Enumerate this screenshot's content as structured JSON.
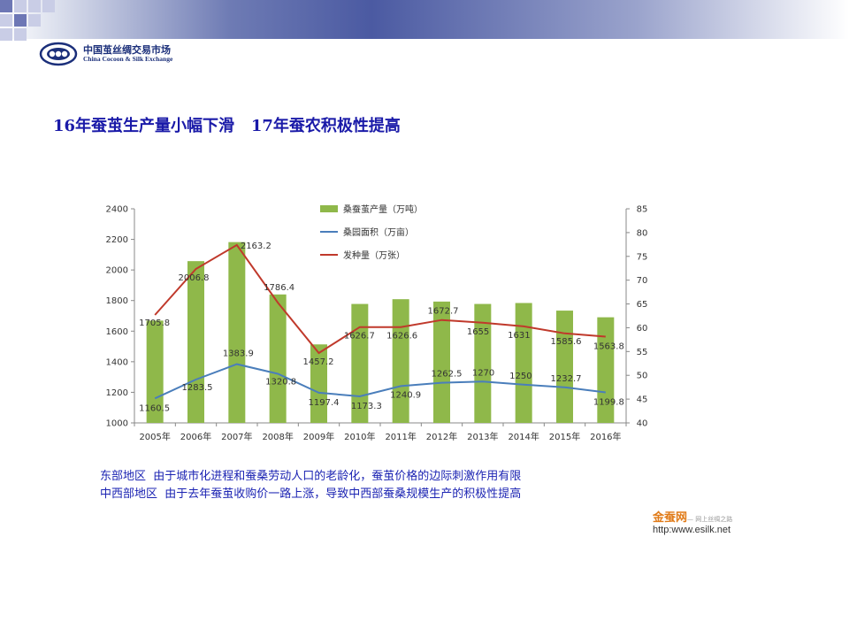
{
  "header": {
    "logo_cn": "中国茧丝绸交易市场",
    "logo_en": "China Cocoon & Silk Exchange",
    "logo_icon": "ccse-logo-icon"
  },
  "slide": {
    "title": "16年蚕茧生产量小幅下滑   17年蚕农积极性提高"
  },
  "chart_data": {
    "type": "bar",
    "categories": [
      "2005年",
      "2006年",
      "2007年",
      "2008年",
      "2009年",
      "2010年",
      "2011年",
      "2012年",
      "2013年",
      "2014年",
      "2015年",
      "2016年"
    ],
    "y_left": {
      "ylim": [
        1000,
        2400
      ],
      "ticks": [
        1000,
        1200,
        1400,
        1600,
        1800,
        2000,
        2200,
        2400
      ]
    },
    "y_right": {
      "ylim": [
        40,
        85
      ],
      "ticks": [
        40,
        45,
        50,
        55,
        60,
        65,
        70,
        75,
        80,
        85
      ]
    },
    "series": [
      {
        "name": "桑蚕茧产量（万吨）",
        "type": "bar",
        "axis": "right",
        "color": "#8fb84a",
        "values": [
          61.5,
          74.0,
          78.0,
          67.0,
          56.5,
          65.0,
          66.0,
          65.5,
          65.0,
          65.2,
          63.6,
          62.2
        ]
      },
      {
        "name": "桑园面积（万亩）",
        "type": "line",
        "axis": "left",
        "color": "#4a7ebb",
        "values": [
          1160.5,
          1283.5,
          1383.9,
          1320.8,
          1197.4,
          1173.3,
          1240.9,
          1262.5,
          1270,
          1250,
          1232.7,
          1199.8
        ],
        "labels": [
          "1160.5",
          "1283.5",
          "1383.9",
          "1320.8",
          "1197.4",
          "1173.3",
          "1240.9",
          "1262.5",
          "1270",
          "1250",
          "1232.7",
          "1199.8"
        ]
      },
      {
        "name": "发种量（万张）",
        "type": "line",
        "axis": "left",
        "color": "#c0392b",
        "values": [
          1705.8,
          2006.8,
          2163.2,
          1786.4,
          1457.2,
          1626.7,
          1626.6,
          1672.7,
          1655,
          1631,
          1585.6,
          1563.8
        ],
        "labels": [
          "1705.8",
          "2006.8",
          "2163.2",
          "1786.4",
          "1457.2",
          "1626.7",
          "1626.6",
          "1672.7",
          "1655",
          "1631",
          "1585.6",
          "1563.8"
        ]
      }
    ],
    "grid": false,
    "legend": "top-center"
  },
  "notes": {
    "east": "东部地区  由于城市化进程和蚕桑劳动人口的老龄化，蚕茧价格的边际刺激作用有限",
    "central_west": "中西部地区  由于去年蚕茧收购价一路上涨，导致中西部蚕桑规模生产的积极性提高"
  },
  "brand": {
    "name": "金蚕网",
    "slogan": "— 网上丝绸之路",
    "url": "http:www.esilk.net"
  }
}
